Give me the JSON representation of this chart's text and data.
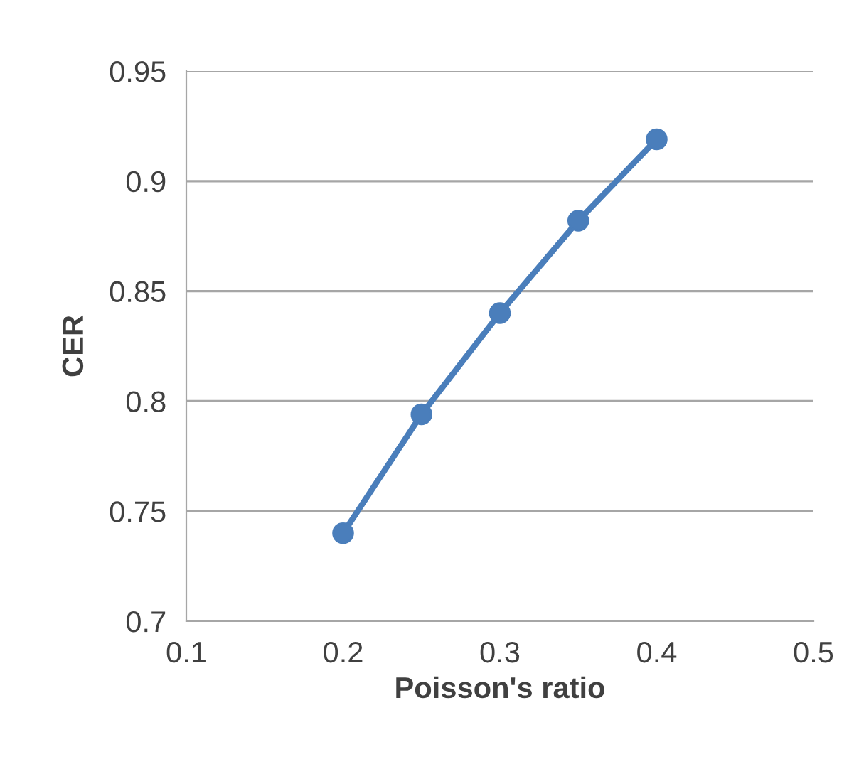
{
  "chart_data": {
    "type": "line",
    "xlabel": "Poisson's ratio",
    "ylabel": "CER",
    "x": [
      0.2,
      0.25,
      0.3,
      0.35,
      0.4
    ],
    "series": [
      {
        "color": "#4a7ebb",
        "values": [
          0.74,
          0.794,
          0.84,
          0.882,
          0.919
        ]
      }
    ],
    "xlim": [
      0.1,
      0.5
    ],
    "xticks": [
      0.1,
      0.2,
      0.3,
      0.4,
      0.5
    ],
    "ylim": [
      0.7,
      0.95
    ],
    "yticks": [
      0.7,
      0.75,
      0.8,
      0.85,
      0.9,
      0.95
    ],
    "grid": "y",
    "marker": "circle",
    "line_style": "solid",
    "legend": false
  }
}
